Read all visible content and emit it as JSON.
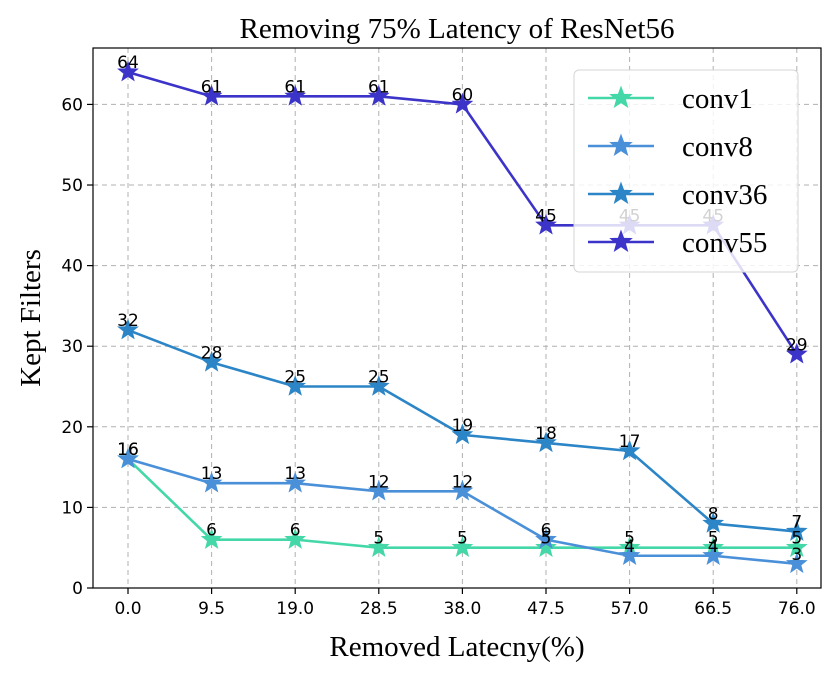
{
  "chart_data": {
    "type": "line",
    "title": "Removing 75%  Latency of ResNet56",
    "xlabel": "Removed Latecny(%)",
    "ylabel": "Kept Filters",
    "categories": [
      "0.0",
      "9.5",
      "19.0",
      "28.5",
      "38.0",
      "47.5",
      "57.0",
      "66.5",
      "76.0"
    ],
    "ylim": [
      0,
      67
    ],
    "yticks": [
      0,
      10,
      20,
      30,
      40,
      50,
      60
    ],
    "grid": true,
    "legend_position": "top-right",
    "marker": "star",
    "series": [
      {
        "name": "conv1",
        "color": "#44d7a8",
        "values": [
          16,
          6,
          6,
          5,
          5,
          5,
          5,
          5,
          5
        ]
      },
      {
        "name": "conv8",
        "color": "#4a90d9",
        "values": [
          16,
          13,
          13,
          12,
          12,
          6,
          4,
          4,
          3
        ]
      },
      {
        "name": "conv36",
        "color": "#2b85c6",
        "values": [
          32,
          28,
          25,
          25,
          19,
          18,
          17,
          8,
          7
        ]
      },
      {
        "name": "conv55",
        "color": "#3c34c9",
        "values": [
          64,
          61,
          61,
          61,
          60,
          45,
          45,
          45,
          29
        ]
      }
    ]
  }
}
